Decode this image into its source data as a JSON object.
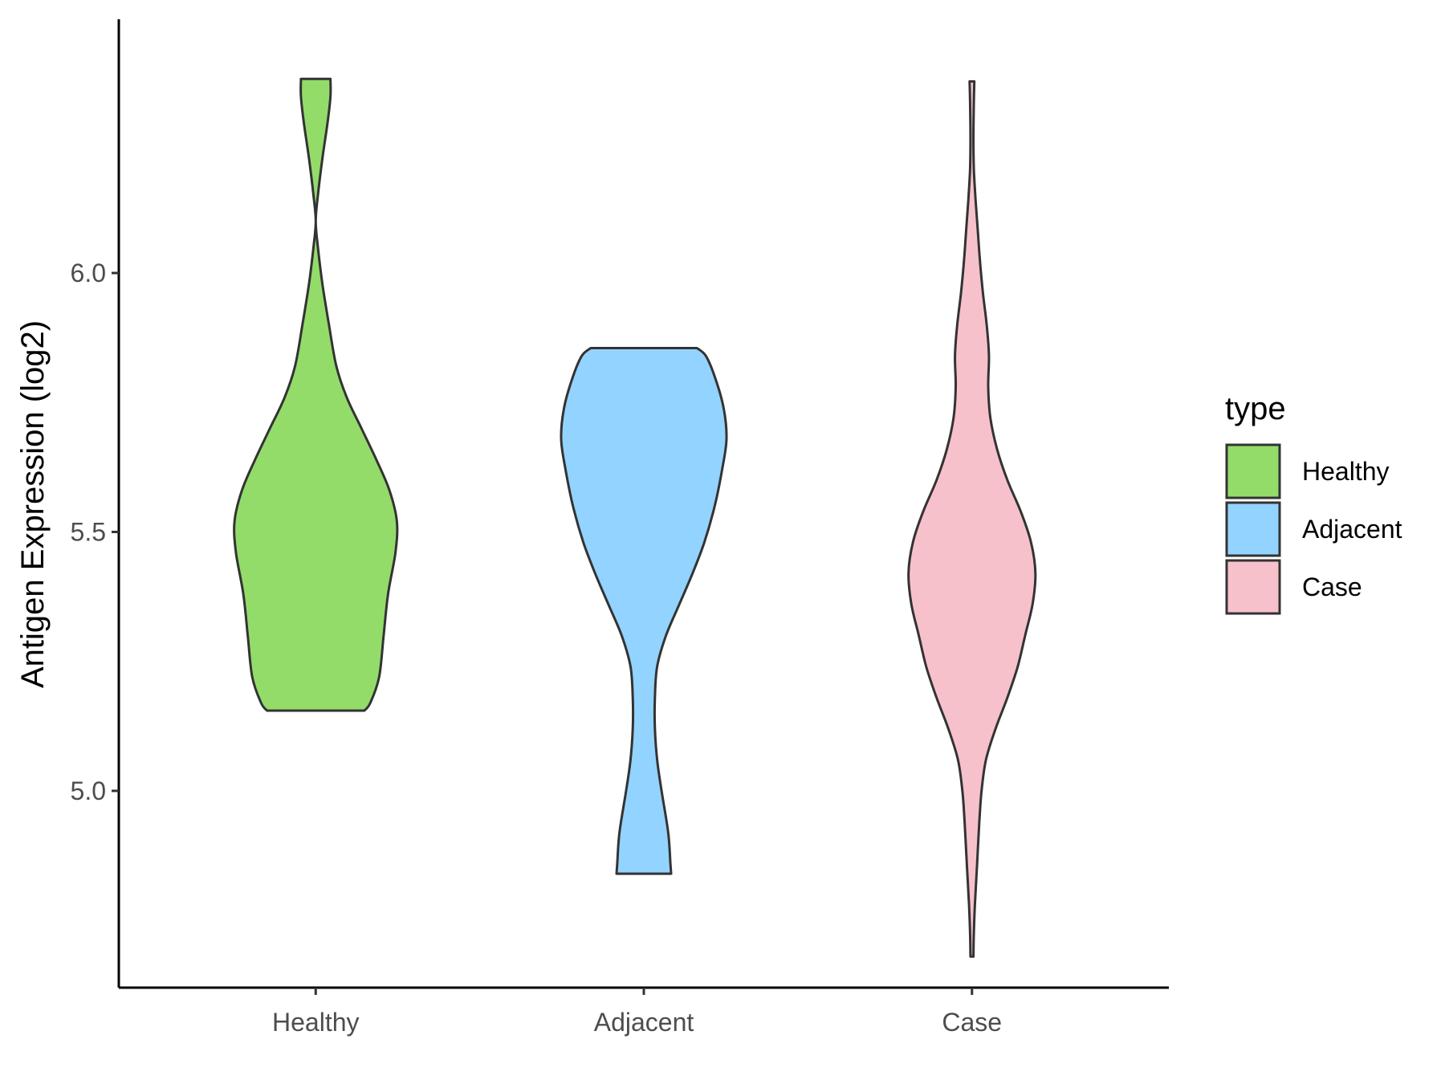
{
  "chart_data": {
    "type": "violin",
    "xlabel": "",
    "ylabel": "Antigen Expression (log2)",
    "ylim": [
      4.62,
      6.49
    ],
    "y_ticks": [
      5.0,
      5.5,
      6.0
    ],
    "y_tick_labels": [
      "5.0",
      "5.5",
      "6.0"
    ],
    "categories": [
      "Healthy",
      "Adjacent",
      "Case"
    ],
    "grid": false,
    "legend": {
      "title": "type",
      "position": "right",
      "entries": [
        "Healthy",
        "Adjacent",
        "Case"
      ]
    },
    "series": [
      {
        "name": "Healthy",
        "color": "#93DC6A",
        "min": 5.155,
        "max": 6.375,
        "density": [
          [
            5.155,
            0.33
          ],
          [
            5.17,
            0.37
          ],
          [
            5.22,
            0.43
          ],
          [
            5.3,
            0.46
          ],
          [
            5.38,
            0.49
          ],
          [
            5.46,
            0.54
          ],
          [
            5.52,
            0.55
          ],
          [
            5.58,
            0.5
          ],
          [
            5.64,
            0.41
          ],
          [
            5.7,
            0.31
          ],
          [
            5.76,
            0.21
          ],
          [
            5.82,
            0.14
          ],
          [
            5.9,
            0.09
          ],
          [
            5.98,
            0.045
          ],
          [
            6.05,
            0.015
          ],
          [
            6.1,
            0.0
          ],
          [
            6.15,
            0.015
          ],
          [
            6.22,
            0.045
          ],
          [
            6.29,
            0.08
          ],
          [
            6.34,
            0.1
          ],
          [
            6.375,
            0.1
          ]
        ]
      },
      {
        "name": "Adjacent",
        "color": "#93D3FF",
        "min": 4.84,
        "max": 5.855,
        "density": [
          [
            4.84,
            0.185
          ],
          [
            4.86,
            0.18
          ],
          [
            4.92,
            0.165
          ],
          [
            5.0,
            0.12
          ],
          [
            5.06,
            0.09
          ],
          [
            5.12,
            0.075
          ],
          [
            5.18,
            0.075
          ],
          [
            5.24,
            0.09
          ],
          [
            5.3,
            0.15
          ],
          [
            5.36,
            0.24
          ],
          [
            5.42,
            0.33
          ],
          [
            5.48,
            0.41
          ],
          [
            5.55,
            0.48
          ],
          [
            5.62,
            0.53
          ],
          [
            5.68,
            0.56
          ],
          [
            5.74,
            0.54
          ],
          [
            5.8,
            0.48
          ],
          [
            5.84,
            0.42
          ],
          [
            5.855,
            0.36
          ]
        ]
      },
      {
        "name": "Case",
        "color": "#F7C1CC",
        "min": 4.68,
        "max": 6.37,
        "density": [
          [
            4.68,
            0.01
          ],
          [
            4.72,
            0.012
          ],
          [
            4.78,
            0.02
          ],
          [
            4.86,
            0.035
          ],
          [
            4.94,
            0.05
          ],
          [
            5.0,
            0.065
          ],
          [
            5.06,
            0.095
          ],
          [
            5.12,
            0.16
          ],
          [
            5.18,
            0.24
          ],
          [
            5.24,
            0.31
          ],
          [
            5.3,
            0.36
          ],
          [
            5.36,
            0.41
          ],
          [
            5.42,
            0.43
          ],
          [
            5.48,
            0.4
          ],
          [
            5.54,
            0.33
          ],
          [
            5.6,
            0.24
          ],
          [
            5.66,
            0.17
          ],
          [
            5.72,
            0.125
          ],
          [
            5.78,
            0.11
          ],
          [
            5.84,
            0.115
          ],
          [
            5.9,
            0.1
          ],
          [
            5.96,
            0.075
          ],
          [
            6.02,
            0.055
          ],
          [
            6.08,
            0.04
          ],
          [
            6.14,
            0.025
          ],
          [
            6.2,
            0.013
          ],
          [
            6.26,
            0.01
          ],
          [
            6.32,
            0.012
          ],
          [
            6.37,
            0.016
          ]
        ]
      }
    ]
  }
}
